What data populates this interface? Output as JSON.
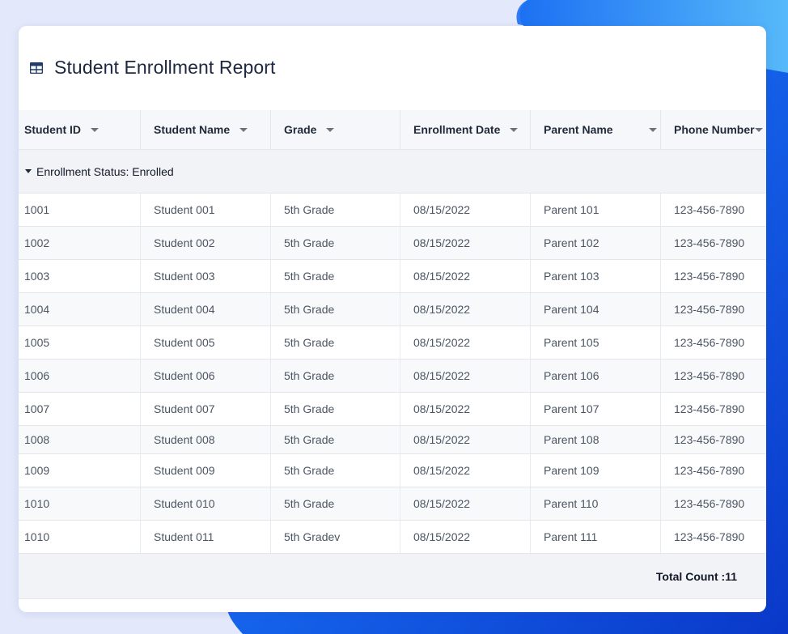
{
  "report": {
    "title": "Student Enrollment Report",
    "icon": "table-icon"
  },
  "columns": [
    {
      "label": "Student ID"
    },
    {
      "label": "Student Name"
    },
    {
      "label": "Grade"
    },
    {
      "label": "Enrollment Date"
    },
    {
      "label": "Parent Name"
    },
    {
      "label": "Phone Number"
    }
  ],
  "group": {
    "label": "Enrollment Status: Enrolled"
  },
  "rows": [
    [
      "1001",
      "Student 001",
      "5th Grade",
      "08/15/2022",
      "Parent 101",
      "123-456-7890"
    ],
    [
      "1002",
      "Student 002",
      "5th Grade",
      "08/15/2022",
      "Parent 102",
      "123-456-7890"
    ],
    [
      "1003",
      "Student 003",
      "5th Grade",
      "08/15/2022",
      "Parent 103",
      "123-456-7890"
    ],
    [
      "1004",
      "Student 004",
      "5th Grade",
      "08/15/2022",
      "Parent 104",
      "123-456-7890"
    ],
    [
      "1005",
      "Student 005",
      "5th Grade",
      "08/15/2022",
      "Parent 105",
      "123-456-7890"
    ],
    [
      "1006",
      "Student 006",
      "5th Grade",
      "08/15/2022",
      "Parent 106",
      "123-456-7890"
    ],
    [
      "1007",
      "Student 007",
      "5th Grade",
      "08/15/2022",
      "Parent 107",
      "123-456-7890"
    ],
    [
      "1008",
      "Student 008",
      "5th Grade",
      "08/15/2022",
      "Parent 108",
      "123-456-7890"
    ],
    [
      "1009",
      "Student 009",
      "5th Grade",
      "08/15/2022",
      "Parent 109",
      "123-456-7890"
    ],
    [
      "1010",
      "Student 010",
      "5th Grade",
      "08/15/2022",
      "Parent 110",
      "123-456-7890"
    ],
    [
      "1010",
      "Student 011",
      "5th Gradev",
      "08/15/2022",
      "Parent 111",
      "123-456-7890"
    ]
  ],
  "footer": {
    "total_label": "Total Count :11"
  },
  "colors": {
    "background": "#e3e8fa",
    "accent_start": "#1d6ff2",
    "accent_end": "#0b3fd6",
    "header_bg": "#f6f7fa",
    "group_bg": "#f2f3f7",
    "title": "#1c2840"
  }
}
